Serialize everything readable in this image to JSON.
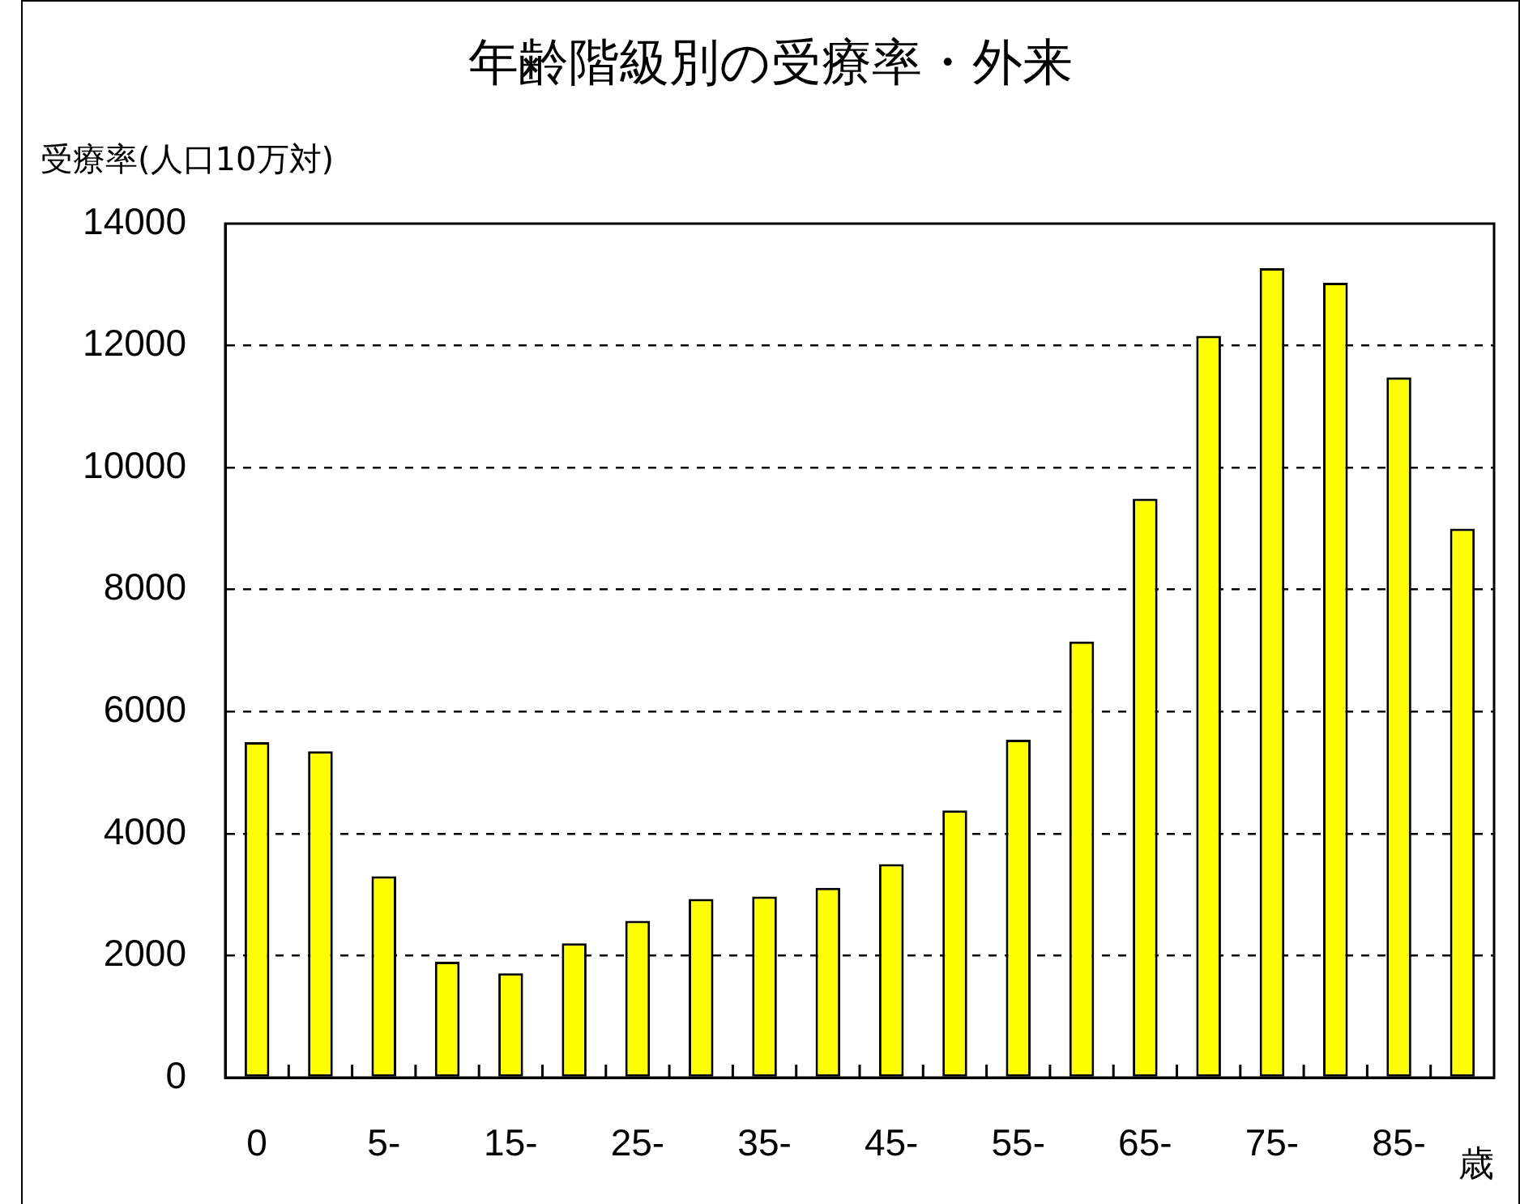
{
  "chart_data": {
    "type": "bar",
    "title": "年齢階級別の受療率・外来",
    "ylabel": "受療率(人口10万対)",
    "xlabel": "歳",
    "categories": [
      "0",
      null,
      "5-",
      null,
      "15-",
      null,
      "25-",
      null,
      "35-",
      null,
      "45-",
      null,
      "55-",
      null,
      "65-",
      null,
      "75-",
      null,
      "85-",
      null
    ],
    "values": [
      5500,
      5350,
      3300,
      1900,
      1710,
      2200,
      2570,
      2930,
      2970,
      3110,
      3500,
      4380,
      5540,
      7150,
      9490,
      12160,
      13270,
      13030,
      11480,
      9000
    ],
    "color": "#ffff00",
    "ylim": [
      0,
      14000
    ],
    "yticks": [
      0,
      2000,
      4000,
      6000,
      8000,
      10000,
      12000,
      14000
    ],
    "grid": "y"
  }
}
